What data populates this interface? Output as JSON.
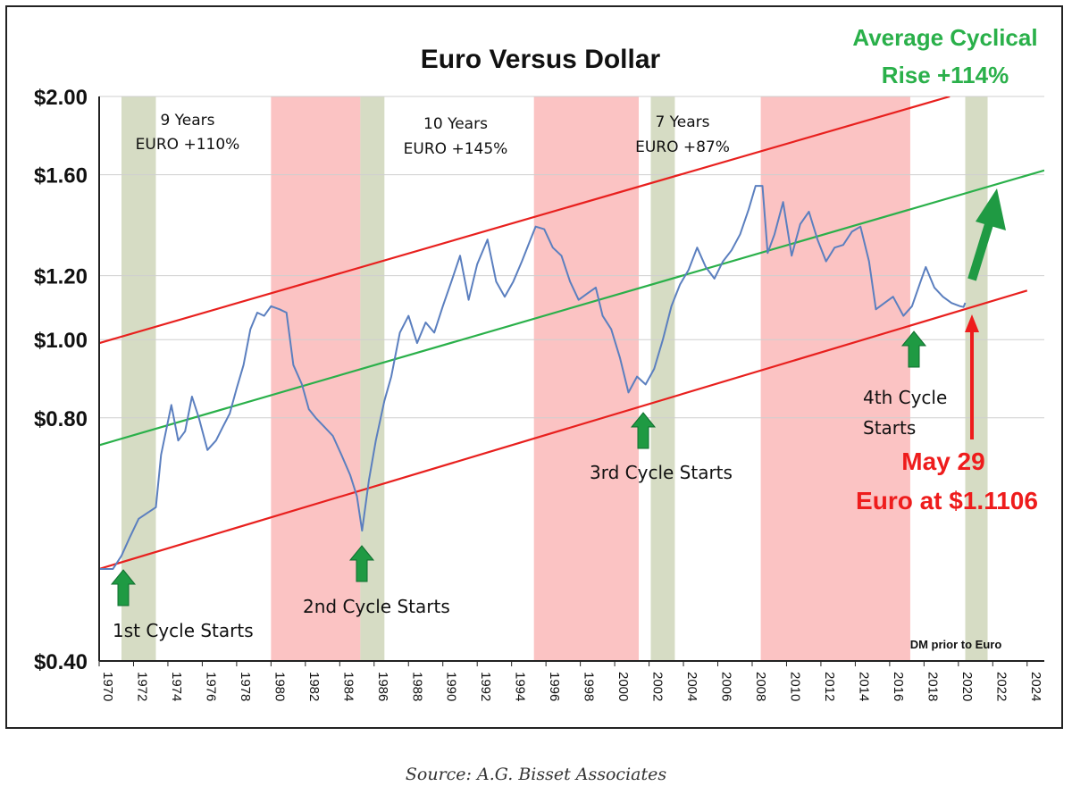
{
  "source": "Source: A.G. Bisset Associates",
  "chart_data": {
    "type": "line",
    "title": "Euro Versus Dollar",
    "headline": {
      "line1": "Average Cyclical",
      "line2": "Rise +114%"
    },
    "x_range": [
      1970,
      2025
    ],
    "y_scale": "log",
    "y_range": [
      0.4,
      2.0
    ],
    "y_ticks": [
      {
        "value": 0.4,
        "label": "$0.40"
      },
      {
        "value": 0.8,
        "label": "$0.80"
      },
      {
        "value": 1.0,
        "label": "$1.00"
      },
      {
        "value": 1.2,
        "label": "$1.20"
      },
      {
        "value": 1.6,
        "label": "$1.60"
      },
      {
        "value": 2.0,
        "label": "$2.00"
      }
    ],
    "x_ticks": [
      "1970",
      "1972",
      "1974",
      "1976",
      "1978",
      "1980",
      "1982",
      "1984",
      "1986",
      "1988",
      "1990",
      "1992",
      "1994",
      "1996",
      "1998",
      "2000",
      "2002",
      "2004",
      "2006",
      "2008",
      "2010",
      "2012",
      "2014",
      "2016",
      "2018",
      "2020",
      "2022",
      "2024"
    ],
    "colors": {
      "line": "#5b7fbf",
      "channel": "#e8201e",
      "trend": "#2ab04a",
      "bear": "#fbc3c3",
      "bull": "#d6dcc4",
      "arrow": "#1f9a43",
      "alert": "#ee1c1c"
    },
    "series": [
      {
        "name": "EUR/USD (DM prior to Euro)",
        "points": [
          [
            1970.0,
            0.52
          ],
          [
            1970.8,
            0.52
          ],
          [
            1971.3,
            0.54
          ],
          [
            1971.8,
            0.57
          ],
          [
            1972.3,
            0.6
          ],
          [
            1972.8,
            0.61
          ],
          [
            1973.3,
            0.62
          ],
          [
            1973.6,
            0.72
          ],
          [
            1974.2,
            0.83
          ],
          [
            1974.6,
            0.75
          ],
          [
            1975.0,
            0.77
          ],
          [
            1975.4,
            0.85
          ],
          [
            1975.8,
            0.8
          ],
          [
            1976.3,
            0.73
          ],
          [
            1976.8,
            0.75
          ],
          [
            1977.2,
            0.78
          ],
          [
            1977.6,
            0.81
          ],
          [
            1978.0,
            0.87
          ],
          [
            1978.4,
            0.93
          ],
          [
            1978.8,
            1.03
          ],
          [
            1979.2,
            1.08
          ],
          [
            1979.6,
            1.07
          ],
          [
            1980.0,
            1.1
          ],
          [
            1980.5,
            1.09
          ],
          [
            1980.9,
            1.08
          ],
          [
            1981.3,
            0.93
          ],
          [
            1981.8,
            0.88
          ],
          [
            1982.2,
            0.82
          ],
          [
            1982.6,
            0.8
          ],
          [
            1983.1,
            0.78
          ],
          [
            1983.6,
            0.76
          ],
          [
            1984.1,
            0.72
          ],
          [
            1984.6,
            0.68
          ],
          [
            1985.0,
            0.64
          ],
          [
            1985.3,
            0.58
          ],
          [
            1985.7,
            0.67
          ],
          [
            1986.1,
            0.75
          ],
          [
            1986.6,
            0.84
          ],
          [
            1987.0,
            0.9
          ],
          [
            1987.5,
            1.02
          ],
          [
            1988.0,
            1.07
          ],
          [
            1988.5,
            0.99
          ],
          [
            1989.0,
            1.05
          ],
          [
            1989.5,
            1.02
          ],
          [
            1990.0,
            1.1
          ],
          [
            1990.5,
            1.18
          ],
          [
            1991.0,
            1.27
          ],
          [
            1991.5,
            1.12
          ],
          [
            1992.0,
            1.24
          ],
          [
            1992.6,
            1.33
          ],
          [
            1993.1,
            1.18
          ],
          [
            1993.6,
            1.13
          ],
          [
            1994.1,
            1.18
          ],
          [
            1994.6,
            1.25
          ],
          [
            1995.1,
            1.33
          ],
          [
            1995.4,
            1.38
          ],
          [
            1995.9,
            1.37
          ],
          [
            1996.4,
            1.3
          ],
          [
            1996.9,
            1.27
          ],
          [
            1997.4,
            1.18
          ],
          [
            1997.9,
            1.12
          ],
          [
            1998.4,
            1.14
          ],
          [
            1998.9,
            1.16
          ],
          [
            1999.3,
            1.07
          ],
          [
            1999.8,
            1.03
          ],
          [
            2000.3,
            0.95
          ],
          [
            2000.8,
            0.86
          ],
          [
            2001.3,
            0.9
          ],
          [
            2001.8,
            0.88
          ],
          [
            2002.3,
            0.92
          ],
          [
            2002.8,
            1.0
          ],
          [
            2003.3,
            1.1
          ],
          [
            2003.8,
            1.17
          ],
          [
            2004.3,
            1.22
          ],
          [
            2004.8,
            1.3
          ],
          [
            2005.3,
            1.23
          ],
          [
            2005.8,
            1.19
          ],
          [
            2006.3,
            1.25
          ],
          [
            2006.8,
            1.29
          ],
          [
            2007.3,
            1.35
          ],
          [
            2007.8,
            1.45
          ],
          [
            2008.2,
            1.55
          ],
          [
            2008.6,
            1.55
          ],
          [
            2008.9,
            1.28
          ],
          [
            2009.3,
            1.35
          ],
          [
            2009.8,
            1.48
          ],
          [
            2010.3,
            1.27
          ],
          [
            2010.8,
            1.39
          ],
          [
            2011.3,
            1.44
          ],
          [
            2011.8,
            1.33
          ],
          [
            2012.3,
            1.25
          ],
          [
            2012.8,
            1.3
          ],
          [
            2013.3,
            1.31
          ],
          [
            2013.8,
            1.36
          ],
          [
            2014.3,
            1.38
          ],
          [
            2014.8,
            1.25
          ],
          [
            2015.2,
            1.09
          ],
          [
            2015.7,
            1.11
          ],
          [
            2016.2,
            1.13
          ],
          [
            2016.8,
            1.07
          ],
          [
            2017.3,
            1.1
          ],
          [
            2017.8,
            1.18
          ],
          [
            2018.1,
            1.23
          ],
          [
            2018.6,
            1.16
          ],
          [
            2019.1,
            1.13
          ],
          [
            2019.6,
            1.11
          ],
          [
            2020.1,
            1.1
          ],
          [
            2020.3,
            1.0975
          ],
          [
            2020.4,
            1.1106
          ]
        ]
      }
    ],
    "channel_lines": [
      {
        "name": "upper",
        "from": [
          1970.0,
          0.99
        ],
        "to": [
          2019.5,
          2.0
        ]
      },
      {
        "name": "lower",
        "from": [
          1970.0,
          0.52
        ],
        "to": [
          2024.0,
          1.15
        ]
      }
    ],
    "trend_line": {
      "from": [
        1970.0,
        0.74
      ],
      "to": [
        2025.0,
        1.62
      ]
    },
    "bear_periods": [
      [
        1980.0,
        1985.2
      ],
      [
        1995.3,
        2001.4
      ],
      [
        2008.5,
        2017.2
      ]
    ],
    "bull_starts": [
      [
        1971.3,
        1973.3
      ],
      [
        1985.2,
        1986.6
      ],
      [
        2002.1,
        2003.5
      ],
      [
        2020.4,
        2021.7
      ]
    ],
    "annotations": {
      "cycle1": {
        "line1": "9 Years",
        "line2": "EURO +110%"
      },
      "cycle2": {
        "line1": "10 Years",
        "line2": "EURO +145%"
      },
      "cycle3": {
        "line1": "7 Years",
        "line2": "EURO +87%"
      },
      "start1": "1st Cycle Starts",
      "start2": "2nd Cycle Starts",
      "start3": "3rd Cycle Starts",
      "start4": {
        "line1": "4th Cycle",
        "line2": "Starts"
      },
      "may": {
        "line1": "May 29",
        "line2": "Euro at $1.1106"
      },
      "note": "DM prior to Euro"
    }
  }
}
